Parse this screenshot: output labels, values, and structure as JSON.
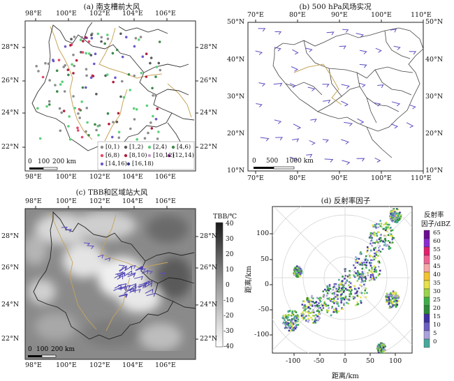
{
  "panel_a": {
    "title": "(a) 南支槽前大风",
    "x_ticks": [
      "98°E",
      "100°E",
      "102°E",
      "104°E",
      "106°E"
    ],
    "y_ticks": [
      "28°N",
      "26°N",
      "24°N",
      "22°N"
    ],
    "scale_labels": [
      "0",
      "100",
      "200 km"
    ],
    "legend": [
      {
        "label": "[0,1)",
        "color": "#8c8c8c"
      },
      {
        "label": "[1,2)",
        "color": "#5a5a5a"
      },
      {
        "label": "[2,4)",
        "color": "#5fcf7a"
      },
      {
        "label": "[4,6)",
        "color": "#3e8a4a"
      },
      {
        "label": "[6,8)",
        "color": "#e34a6a"
      },
      {
        "label": "[8,10)",
        "color": "#b0203e"
      },
      {
        "label": "[10,12)",
        "color": "#c89ad0"
      },
      {
        "label": "[12,14)",
        "color": "#7a2a7a"
      },
      {
        "label": "[14,16)",
        "color": "#6a5acd"
      },
      {
        "label": "[16,18)",
        "color": "#3a3a8a"
      }
    ]
  },
  "panel_b": {
    "title": "(b) 500 hPa风场实况",
    "x_ticks": [
      "70°E",
      "80°E",
      "90°E",
      "100°E",
      "110°E"
    ],
    "y_ticks": [
      "50°N",
      "40°N",
      "30°N",
      "20°N",
      "10°N"
    ],
    "scale_labels": [
      "0",
      "500",
      "1000 km"
    ]
  },
  "panel_c": {
    "title": "(c) TBB和区域站大风",
    "x_ticks": [
      "98°E",
      "100°E",
      "102°E",
      "104°E",
      "106°E"
    ],
    "y_ticks": [
      "28°N",
      "26°N",
      "24°N",
      "22°N"
    ],
    "scale_labels": [
      "0",
      "100",
      "200 km"
    ],
    "colorbar_title": "TBB/℃",
    "colorbar_ticks": [
      "40",
      "30",
      "20",
      "10",
      "0",
      "-10",
      "-20",
      "-30",
      "-40"
    ]
  },
  "panel_d": {
    "title": "(d) 反射率因子",
    "x_ticks": [
      "-100",
      "-50",
      "0",
      "50",
      "100"
    ],
    "y_ticks": [
      "100",
      "50",
      "0",
      "-50",
      "-100"
    ],
    "xlabel": "距离/km",
    "ylabel": "距离/km",
    "colorbar_title_1": "反射率",
    "colorbar_title_2": "因子/dBZ",
    "colorbar": [
      {
        "label": "65",
        "color": "#6a0d91"
      },
      {
        "label": "60",
        "color": "#8b2bd0"
      },
      {
        "label": "55",
        "color": "#e01f6d"
      },
      {
        "label": "50",
        "color": "#f06292"
      },
      {
        "label": "45",
        "color": "#f7a8a8"
      },
      {
        "label": "40",
        "color": "#f2c430"
      },
      {
        "label": "35",
        "color": "#e6e14a"
      },
      {
        "label": "30",
        "color": "#9bd34a"
      },
      {
        "label": "25",
        "color": "#3fae49"
      },
      {
        "label": "20",
        "color": "#2e8b3a"
      },
      {
        "label": "15",
        "color": "#3f2fa0"
      },
      {
        "label": "10",
        "color": "#6a5fc1"
      },
      {
        "label": "5",
        "color": "#a9a2dc"
      },
      {
        "label": "0",
        "color": "#48a89a"
      }
    ]
  }
}
